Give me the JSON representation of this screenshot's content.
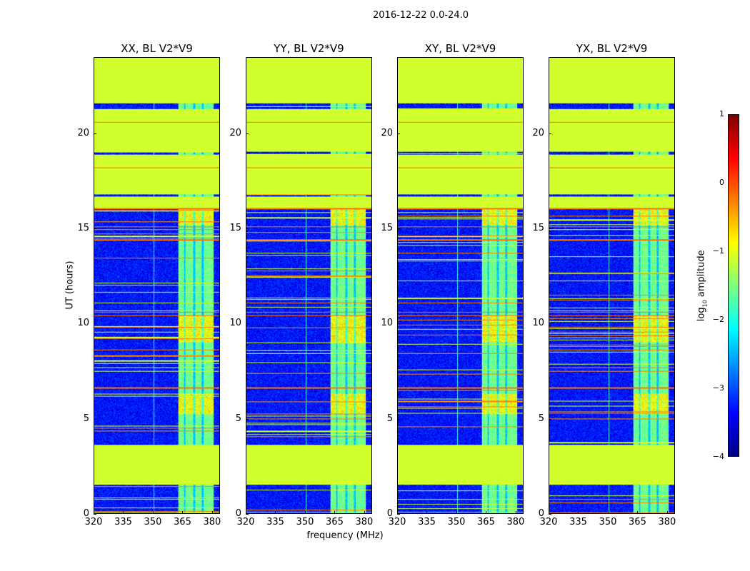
{
  "suptitle": "2016-12-22 0.0-24.0",
  "chart_data": [
    {
      "type": "heatmap",
      "title": "XX, BL V2*V9",
      "xlim": [
        320,
        384
      ],
      "ylim": [
        0,
        24
      ],
      "xticks": [
        320,
        335,
        350,
        365,
        380
      ],
      "yticks": [
        0,
        5,
        10,
        15,
        20
      ],
      "xlabel": "",
      "ylabel": "UT (hours)"
    },
    {
      "type": "heatmap",
      "title": "YY, BL V2*V9",
      "xlim": [
        320,
        384
      ],
      "ylim": [
        0,
        24
      ],
      "xticks": [
        320,
        335,
        350,
        365,
        380
      ],
      "yticks": [
        0,
        5,
        10,
        15,
        20
      ],
      "xlabel": "frequency (MHz)",
      "ylabel": ""
    },
    {
      "type": "heatmap",
      "title": "XY, BL V2*V9",
      "xlim": [
        320,
        384
      ],
      "ylim": [
        0,
        24
      ],
      "xticks": [
        320,
        335,
        350,
        365,
        380
      ],
      "yticks": [
        0,
        5,
        10,
        15,
        20
      ],
      "xlabel": "",
      "ylabel": ""
    },
    {
      "type": "heatmap",
      "title": "YX, BL V2*V9",
      "xlim": [
        320,
        384
      ],
      "ylim": [
        0,
        24
      ],
      "xticks": [
        320,
        335,
        350,
        365,
        380
      ],
      "yticks": [
        0,
        5,
        10,
        15,
        20
      ],
      "xlabel": "",
      "ylabel": ""
    }
  ],
  "structure": {
    "background_log10": -3.3,
    "flagged_log10": -1.1,
    "flagged_hours": [
      [
        1.5,
        3.6
      ],
      [
        16.1,
        16.7
      ],
      [
        16.8,
        18.9
      ],
      [
        19.05,
        21.3
      ],
      [
        21.6,
        24
      ]
    ],
    "rfi_band_mhz": [
      363,
      381
    ],
    "rfi_gaps_mhz": [
      366.3,
      371.3,
      375.4
    ],
    "rfi_line_mhz": 350.5,
    "red_line_hours": [
      18.2,
      20.6,
      15.1,
      14.4,
      10.6,
      10.4,
      6.6,
      16.05
    ]
  },
  "colorbar": {
    "label": "log10 amplitude",
    "label_main": "log",
    "label_sub": "10",
    "label_rest": " amplitude",
    "range": [
      -4,
      1
    ],
    "ticks": [
      "−4",
      "−3",
      "−2",
      "−1",
      "0",
      "1"
    ],
    "tick_values": [
      -4,
      -3,
      -2,
      -1,
      0,
      1
    ],
    "colormap": "jet"
  }
}
